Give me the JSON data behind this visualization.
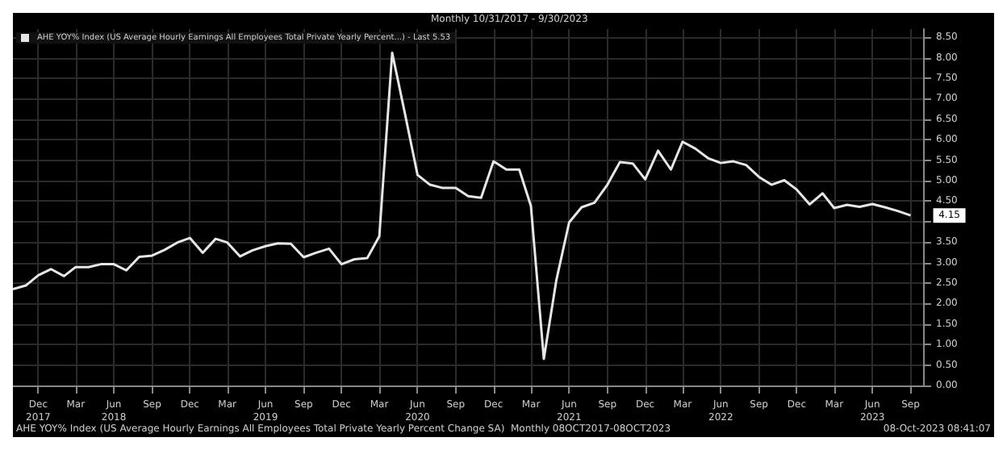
{
  "chart_data": {
    "type": "line",
    "title": "Monthly 10/31/2017 - 9/30/2023",
    "x": [
      "2017-10",
      "2017-11",
      "2017-12",
      "2018-01",
      "2018-02",
      "2018-03",
      "2018-04",
      "2018-05",
      "2018-06",
      "2018-07",
      "2018-08",
      "2018-09",
      "2018-10",
      "2018-11",
      "2018-12",
      "2019-01",
      "2019-02",
      "2019-03",
      "2019-04",
      "2019-05",
      "2019-06",
      "2019-07",
      "2019-08",
      "2019-09",
      "2019-10",
      "2019-11",
      "2019-12",
      "2020-01",
      "2020-02",
      "2020-03",
      "2020-04",
      "2020-05",
      "2020-06",
      "2020-07",
      "2020-08",
      "2020-09",
      "2020-10",
      "2020-11",
      "2020-12",
      "2021-01",
      "2021-02",
      "2021-03",
      "2021-04",
      "2021-05",
      "2021-06",
      "2021-07",
      "2021-08",
      "2021-09",
      "2021-10",
      "2021-11",
      "2021-12",
      "2022-01",
      "2022-02",
      "2022-03",
      "2022-04",
      "2022-05",
      "2022-06",
      "2022-07",
      "2022-08",
      "2022-09",
      "2022-10",
      "2022-11",
      "2022-12",
      "2023-01",
      "2023-02",
      "2023-03",
      "2023-04",
      "2023-05",
      "2023-06",
      "2023-07",
      "2023-08",
      "2023-09"
    ],
    "series": [
      {
        "name": "AHE YOY% Index (US Average Hourly Earnings All Employees Total Private Yearly Percent...) - Last 5.53",
        "color": "#e6e6e6",
        "values": [
          2.35,
          2.44,
          2.69,
          2.84,
          2.67,
          2.89,
          2.89,
          2.96,
          2.96,
          2.81,
          3.14,
          3.17,
          3.31,
          3.49,
          3.6,
          3.24,
          3.58,
          3.49,
          3.15,
          3.3,
          3.4,
          3.47,
          3.46,
          3.13,
          3.24,
          3.34,
          2.96,
          3.08,
          3.11,
          3.64,
          8.12,
          6.67,
          5.14,
          4.9,
          4.82,
          4.82,
          4.62,
          4.58,
          5.47,
          5.27,
          5.27,
          4.38,
          0.65,
          2.56,
          3.98,
          4.35,
          4.46,
          4.9,
          5.45,
          5.42,
          5.03,
          5.73,
          5.27,
          5.95,
          5.78,
          5.55,
          5.43,
          5.47,
          5.38,
          5.09,
          4.9,
          5.01,
          4.78,
          4.42,
          4.69,
          4.33,
          4.41,
          4.36,
          4.43,
          4.35,
          4.26,
          4.15
        ]
      }
    ],
    "xlim": [
      "2017-10",
      "2023-10"
    ],
    "xticks": [
      {
        "value": "2017-12",
        "label": "Dec\n2017"
      },
      {
        "value": "2018-03",
        "label": "Mar"
      },
      {
        "value": "2018-06",
        "label": "Jun\n2018"
      },
      {
        "value": "2018-09",
        "label": "Sep"
      },
      {
        "value": "2018-12",
        "label": "Dec"
      },
      {
        "value": "2019-03",
        "label": "Mar"
      },
      {
        "value": "2019-06",
        "label": "Jun\n2019"
      },
      {
        "value": "2019-09",
        "label": "Sep"
      },
      {
        "value": "2019-12",
        "label": "Dec"
      },
      {
        "value": "2020-03",
        "label": "Mar"
      },
      {
        "value": "2020-06",
        "label": "Jun\n2020"
      },
      {
        "value": "2020-09",
        "label": "Sep"
      },
      {
        "value": "2020-12",
        "label": "Dec"
      },
      {
        "value": "2021-03",
        "label": "Mar"
      },
      {
        "value": "2021-06",
        "label": "Jun\n2021"
      },
      {
        "value": "2021-09",
        "label": "Sep"
      },
      {
        "value": "2021-12",
        "label": "Dec"
      },
      {
        "value": "2022-03",
        "label": "Mar"
      },
      {
        "value": "2022-06",
        "label": "Jun\n2022"
      },
      {
        "value": "2022-09",
        "label": "Sep"
      },
      {
        "value": "2022-12",
        "label": "Dec"
      },
      {
        "value": "2023-03",
        "label": "Mar"
      },
      {
        "value": "2023-06",
        "label": "Jun\n2023"
      },
      {
        "value": "2023-09",
        "label": "Sep"
      }
    ],
    "ylim": [
      0,
      8.7
    ],
    "yticks": [
      {
        "value": 0,
        "label": "0.00"
      },
      {
        "value": 0.5,
        "label": "0.50"
      },
      {
        "value": 1,
        "label": "1.00"
      },
      {
        "value": 1.5,
        "label": "1.50"
      },
      {
        "value": 2,
        "label": "2.00"
      },
      {
        "value": 2.5,
        "label": "2.50"
      },
      {
        "value": 3,
        "label": "3.00"
      },
      {
        "value": 3.5,
        "label": "3.50"
      },
      {
        "value": 4,
        "label": null
      },
      {
        "value": 4.5,
        "label": "4.50"
      },
      {
        "value": 5,
        "label": "5.00"
      },
      {
        "value": 5.5,
        "label": "5.50"
      },
      {
        "value": 6,
        "label": "6.00"
      },
      {
        "value": 6.5,
        "label": "6.50"
      },
      {
        "value": 7,
        "label": "7.00"
      },
      {
        "value": 7.5,
        "label": "7.50"
      },
      {
        "value": 8,
        "label": "8.00"
      },
      {
        "value": 8.5,
        "label": "8.50"
      }
    ],
    "grid": true,
    "legend": "top left",
    "annotations": [
      {
        "text": "4.15",
        "x": "2023-09",
        "y": 4.15
      },
      "AHE YOY% Index (US Average Hourly Earnings All Employees Total Private Yearly Percent Change SA)  Monthly 08OCT2017-08OCT2023",
      "08-Oct-2023 08:41:07"
    ]
  }
}
